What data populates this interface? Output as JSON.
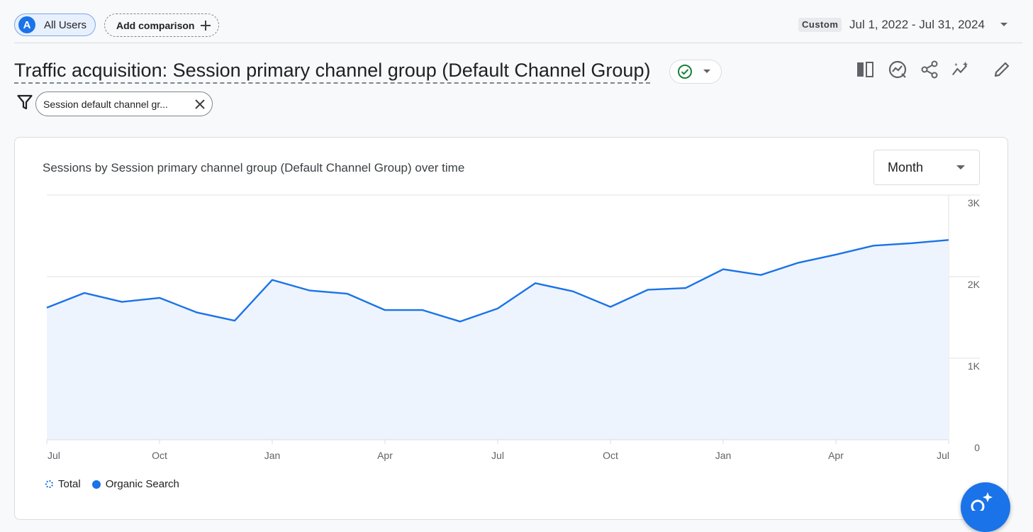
{
  "header": {
    "segment_avatar": "A",
    "segment_label": "All Users",
    "add_comparison_label": "Add comparison",
    "date_badge": "Custom",
    "date_range": "Jul 1, 2022 - Jul 31, 2024"
  },
  "report": {
    "title": "Traffic acquisition: Session primary channel group (Default Channel Group)",
    "toolbar_icons": [
      "compare-columns-icon",
      "insights-icon",
      "share-icon",
      "sparkle-trend-icon",
      "edit-icon"
    ]
  },
  "filter": {
    "chip_label": "Session default channel gr..."
  },
  "card": {
    "title": "Sessions by Session primary channel group (Default Channel Group) over time",
    "granularity": "Month"
  },
  "legend": {
    "total_label": "Total",
    "series_label": "Organic Search"
  },
  "colors": {
    "accent": "#1a73e8",
    "area_fill": "#eef4fd"
  },
  "chart_data": {
    "type": "area",
    "x": [
      "Jul",
      "Aug",
      "Sep",
      "Oct",
      "Nov",
      "Dec",
      "Jan",
      "Feb",
      "Mar",
      "Apr",
      "May",
      "Jun",
      "Jul",
      "Aug",
      "Sep",
      "Oct",
      "Nov",
      "Dec",
      "Jan",
      "Feb",
      "Mar",
      "Apr",
      "May",
      "Jun",
      "Jul"
    ],
    "x_tick_labels": [
      "Jul",
      "Oct",
      "Jan",
      "Apr",
      "Jul",
      "Oct",
      "Jan",
      "Apr",
      "Jul"
    ],
    "x_tick_indices": [
      0,
      3,
      6,
      9,
      12,
      15,
      18,
      21,
      24
    ],
    "series": [
      {
        "name": "Organic Search",
        "values": [
          1620,
          1800,
          1690,
          1740,
          1560,
          1460,
          1960,
          1830,
          1790,
          1590,
          1590,
          1450,
          1610,
          1920,
          1820,
          1630,
          1840,
          1860,
          2090,
          2020,
          2170,
          2270,
          2380,
          2410,
          2450
        ]
      }
    ],
    "y_ticks": [
      0,
      1000,
      2000,
      3000
    ],
    "y_tick_labels": [
      "0",
      "1K",
      "2K",
      "3K"
    ],
    "ylim": [
      0,
      3000
    ],
    "grid": true
  }
}
